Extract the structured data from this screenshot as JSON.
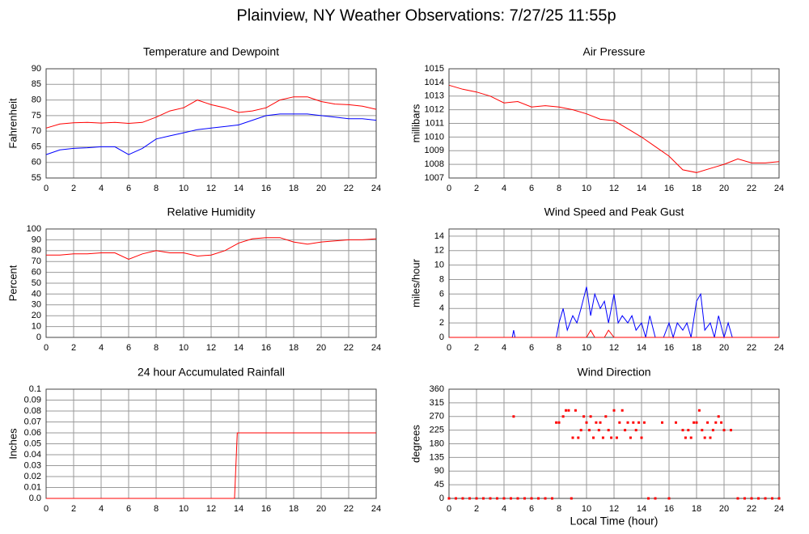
{
  "title": "Plainview, NY Weather Observations: 7/27/25 11:55p",
  "chart_data": [
    {
      "type": "line",
      "title": "Temperature and Dewpoint",
      "y_label": "Fahrenheit",
      "x": [
        0,
        1,
        2,
        3,
        4,
        5,
        6,
        7,
        8,
        9,
        10,
        11,
        12,
        13,
        14,
        15,
        16,
        17,
        18,
        19,
        20,
        21,
        22,
        23,
        24
      ],
      "series": [
        {
          "name": "Temperature",
          "color": "#ff0000",
          "values": [
            71,
            72.3,
            72.7,
            72.8,
            72.6,
            72.8,
            72.5,
            72.8,
            74.5,
            76.5,
            77.5,
            80,
            78.5,
            77.5,
            76,
            76.5,
            77.5,
            80,
            81,
            81,
            79.5,
            78.7,
            78.5,
            78,
            77
          ]
        },
        {
          "name": "Dewpoint",
          "color": "#0000ff",
          "values": [
            62.5,
            64,
            64.5,
            64.7,
            65,
            65,
            62.5,
            64.5,
            67.5,
            68.5,
            69.5,
            70.5,
            71,
            71.5,
            72,
            73.5,
            75,
            75.5,
            75.5,
            75.5,
            75,
            74.5,
            74,
            74,
            73.5
          ]
        }
      ],
      "xlim": [
        0,
        24
      ],
      "xticks": [
        0,
        2,
        4,
        6,
        8,
        10,
        12,
        14,
        16,
        18,
        20,
        22,
        24
      ],
      "ylim": [
        55,
        90
      ],
      "yticks": [
        55,
        60,
        65,
        70,
        75,
        80,
        85,
        90
      ],
      "grid": true
    },
    {
      "type": "line",
      "title": "Air Pressure",
      "y_label": "millibars",
      "x": [
        0,
        1,
        2,
        3,
        4,
        5,
        6,
        7,
        8,
        9,
        10,
        11,
        12,
        13,
        14,
        15,
        16,
        17,
        18,
        19,
        20,
        21,
        22,
        23,
        24
      ],
      "series": [
        {
          "name": "Pressure",
          "color": "#ff0000",
          "values": [
            1013.8,
            1013.5,
            1013.3,
            1013,
            1012.5,
            1012.6,
            1012.2,
            1012.3,
            1012.2,
            1012,
            1011.7,
            1011.3,
            1011.2,
            1010.6,
            1010,
            1009.3,
            1008.6,
            1007.6,
            1007.4,
            1007.7,
            1008,
            1008.4,
            1008.1,
            1008.1,
            1008.2
          ]
        }
      ],
      "xlim": [
        0,
        24
      ],
      "xticks": [
        0,
        2,
        4,
        6,
        8,
        10,
        12,
        14,
        16,
        18,
        20,
        22,
        24
      ],
      "ylim": [
        1007,
        1015
      ],
      "yticks": [
        1007,
        1008,
        1009,
        1010,
        1011,
        1012,
        1013,
        1014,
        1015
      ],
      "grid": true
    },
    {
      "type": "line",
      "title": "Relative Humidity",
      "y_label": "Percent",
      "x": [
        0,
        1,
        2,
        3,
        4,
        5,
        6,
        7,
        8,
        9,
        10,
        11,
        12,
        13,
        14,
        15,
        16,
        17,
        18,
        19,
        20,
        21,
        22,
        23,
        24
      ],
      "series": [
        {
          "name": "Humidity",
          "color": "#ff0000",
          "values": [
            76,
            76,
            77,
            77,
            78,
            78,
            72,
            77,
            80,
            78,
            78,
            75,
            76,
            80,
            87,
            91,
            92,
            92,
            88,
            86,
            88,
            89,
            90,
            90,
            91
          ]
        }
      ],
      "xlim": [
        0,
        24
      ],
      "xticks": [
        0,
        2,
        4,
        6,
        8,
        10,
        12,
        14,
        16,
        18,
        20,
        22,
        24
      ],
      "ylim": [
        0,
        100
      ],
      "yticks": [
        0,
        10,
        20,
        30,
        40,
        50,
        60,
        70,
        80,
        90,
        100
      ],
      "grid": true
    },
    {
      "type": "line",
      "title": "Wind Speed and Peak Gust",
      "y_label": "miles/hour",
      "x": [
        0,
        4.6,
        4.7,
        4.8,
        7.8,
        8,
        8.3,
        8.6,
        9,
        9.3,
        9.6,
        10,
        10.3,
        10.6,
        11,
        11.3,
        11.6,
        12,
        12.3,
        12.6,
        13,
        13.3,
        13.6,
        14,
        14.3,
        14.6,
        15,
        15.3,
        15.6,
        16,
        16.3,
        16.6,
        17,
        17.3,
        17.6,
        18,
        18.3,
        18.6,
        19,
        19.3,
        19.6,
        20,
        20.3,
        20.6,
        21,
        24
      ],
      "series": [
        {
          "name": "Wind Speed",
          "color": "#0000ff",
          "values": [
            0,
            0,
            1,
            0,
            0,
            2,
            4,
            1,
            3,
            2,
            4,
            7,
            3,
            6,
            4,
            5,
            2,
            6,
            2,
            3,
            2,
            3,
            1,
            2,
            0,
            3,
            0,
            0,
            0,
            2,
            0,
            2,
            1,
            2,
            0,
            5,
            6,
            1,
            2,
            0,
            3,
            0,
            2,
            0,
            0,
            0
          ]
        },
        {
          "name": "Peak Gust",
          "color": "#ff0000",
          "values": [
            0,
            0,
            0,
            0,
            0,
            0,
            0,
            0,
            0,
            0,
            0,
            0,
            1,
            0,
            0,
            0,
            1,
            0,
            0,
            0,
            0,
            0,
            0,
            0,
            0,
            0,
            0,
            0,
            0,
            0,
            0,
            0,
            0,
            0,
            0,
            0,
            0,
            0,
            0,
            0,
            0,
            0,
            0,
            0,
            0,
            0
          ]
        }
      ],
      "xlim": [
        0,
        24
      ],
      "xticks": [
        0,
        2,
        4,
        6,
        8,
        10,
        12,
        14,
        16,
        18,
        20,
        22,
        24
      ],
      "ylim": [
        0,
        15
      ],
      "yticks": [
        0,
        2,
        4,
        6,
        8,
        10,
        12,
        14
      ],
      "grid": true
    },
    {
      "type": "line",
      "title": "24 hour Accumulated Rainfall",
      "y_label": "Inches",
      "x": [
        0,
        13.7,
        13.9,
        24
      ],
      "series": [
        {
          "name": "Rainfall",
          "color": "#ff0000",
          "values": [
            0,
            0,
            0.06,
            0.06
          ]
        }
      ],
      "xlim": [
        0,
        24
      ],
      "xticks": [
        0,
        2,
        4,
        6,
        8,
        10,
        12,
        14,
        16,
        18,
        20,
        22,
        24
      ],
      "ylim": [
        0,
        0.1
      ],
      "yticks": [
        {
          "value": 0,
          "label": "0.0"
        },
        0.01,
        0.02,
        0.03,
        0.04,
        0.05,
        0.06,
        0.07,
        0.08,
        0.09,
        0.1
      ],
      "grid": true
    },
    {
      "type": "scatter",
      "title": "Wind Direction",
      "y_label": "degrees",
      "x_label": "Local Time (hour)",
      "x": [
        0,
        0.5,
        1,
        1.5,
        2,
        2.5,
        3,
        3.5,
        4,
        4.5,
        5,
        5.5,
        6,
        6.5,
        7,
        7.5,
        4.7,
        7.8,
        8,
        8.3,
        8.5,
        8.7,
        8.9,
        9,
        9.2,
        9.4,
        9.6,
        9.8,
        10,
        10.2,
        10.3,
        10.5,
        10.7,
        10.9,
        11,
        11.2,
        11.4,
        11.6,
        11.8,
        12,
        12.2,
        12.4,
        12.6,
        12.8,
        13,
        13.2,
        13.4,
        13.6,
        13.8,
        14,
        14.2,
        14.5,
        15,
        15.5,
        16,
        16.5,
        17,
        17.2,
        17.4,
        17.6,
        17.8,
        18,
        18.2,
        18.4,
        18.6,
        18.8,
        19,
        19.2,
        19.4,
        19.6,
        19.8,
        20,
        20.5,
        21,
        21.5,
        22,
        22.5,
        23,
        23.5,
        24
      ],
      "series": [
        {
          "name": "Direction",
          "color": "#ff0000",
          "values": [
            0,
            0,
            0,
            0,
            0,
            0,
            0,
            0,
            0,
            0,
            0,
            0,
            0,
            0,
            0,
            0,
            270,
            250,
            250,
            270,
            290,
            290,
            0,
            200,
            290,
            200,
            225,
            270,
            250,
            225,
            270,
            200,
            250,
            225,
            250,
            200,
            270,
            225,
            200,
            290,
            200,
            250,
            290,
            225,
            250,
            200,
            250,
            225,
            250,
            200,
            250,
            0,
            0,
            250,
            0,
            250,
            225,
            200,
            225,
            200,
            250,
            250,
            290,
            225,
            200,
            250,
            200,
            225,
            250,
            270,
            250,
            225,
            225,
            0,
            0,
            0,
            0,
            0,
            0,
            0
          ]
        }
      ],
      "xlim": [
        0,
        24
      ],
      "xticks": [
        0,
        2,
        4,
        6,
        8,
        10,
        12,
        14,
        16,
        18,
        20,
        22,
        24
      ],
      "ylim": [
        0,
        360
      ],
      "yticks": [
        0,
        45,
        90,
        135,
        180,
        225,
        270,
        315,
        360
      ],
      "grid": true
    }
  ]
}
